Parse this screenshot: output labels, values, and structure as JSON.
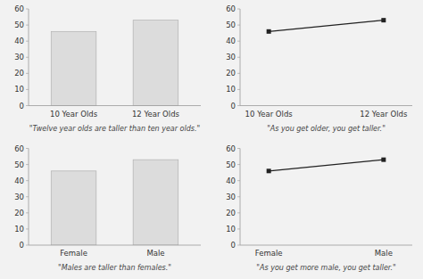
{
  "chart_data": [
    {
      "type": "bar",
      "categories": [
        "10 Year Olds",
        "12 Year Olds"
      ],
      "values": [
        46,
        53
      ],
      "color": "#dcdcdc",
      "xlabel": "\"Twelve year olds are taller than ten year olds.\"",
      "ylim": [
        0,
        60
      ],
      "yticks": [
        0,
        10,
        20,
        30,
        40,
        50,
        60
      ],
      "grid": false
    },
    {
      "type": "line",
      "categories": [
        "10 Year Olds",
        "12 Year Olds"
      ],
      "values": [
        46,
        53
      ],
      "color": "#222222",
      "marker": "square",
      "xlabel": "\"As you get older, you get taller.\"",
      "ylim": [
        0,
        60
      ],
      "yticks": [
        0,
        10,
        20,
        30,
        40,
        50,
        60
      ],
      "grid": false
    },
    {
      "type": "bar",
      "categories": [
        "Female",
        "Male"
      ],
      "values": [
        46,
        53
      ],
      "color": "#dcdcdc",
      "xlabel": "\"Males are taller than females.\"",
      "ylim": [
        0,
        60
      ],
      "yticks": [
        0,
        10,
        20,
        30,
        40,
        50,
        60
      ],
      "grid": false
    },
    {
      "type": "line",
      "categories": [
        "Female",
        "Male"
      ],
      "values": [
        46,
        53
      ],
      "color": "#222222",
      "marker": "square",
      "xlabel": "\"As you get more male, you get taller.\"",
      "ylim": [
        0,
        60
      ],
      "yticks": [
        0,
        10,
        20,
        30,
        40,
        50,
        60
      ],
      "grid": false
    }
  ]
}
